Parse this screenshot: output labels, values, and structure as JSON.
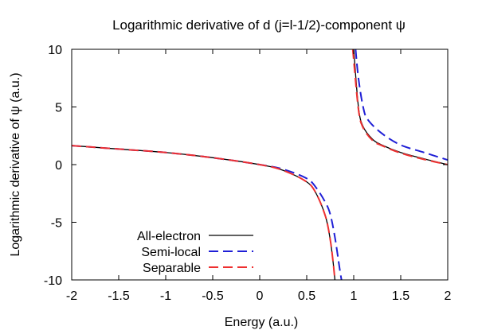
{
  "chart_data": {
    "type": "line",
    "title": "Logarithmic derivative of d (j=l-1/2)-component ψ",
    "xlabel": "Energy (a.u.)",
    "ylabel": "Logarithmic derivative of ψ (a.u.)",
    "xlim": [
      -2,
      2
    ],
    "ylim": [
      -10,
      10
    ],
    "xticks": [
      "-2",
      "-1.5",
      "-1",
      "-0.5",
      "0",
      "0.5",
      "1",
      "1.5",
      "2"
    ],
    "yticks": [
      "-10",
      "-5",
      "0",
      "5",
      "10"
    ],
    "grid": false,
    "legend": "bottom-left",
    "series": [
      {
        "name": "All-electron",
        "color": "#000000",
        "dash": "solid",
        "x": [
          -2.0,
          -1.5,
          -1.0,
          -0.5,
          0.0,
          0.25,
          0.5,
          0.6,
          0.7,
          0.75,
          0.78,
          0.8,
          0.82,
          1.0,
          1.05,
          1.1,
          1.2,
          1.3,
          1.5,
          1.75,
          2.0
        ],
        "y": [
          1.65,
          1.35,
          1.05,
          0.6,
          0.0,
          -0.5,
          -1.5,
          -2.5,
          -4.5,
          -6.5,
          -8.4,
          -10.0,
          null,
          10.0,
          5.0,
          3.3,
          2.2,
          1.7,
          1.05,
          0.5,
          0.0
        ]
      },
      {
        "name": "Semi-local",
        "color": "#1f1fd6",
        "dash": "dashed",
        "x": [
          -2.0,
          -1.5,
          -1.0,
          -0.5,
          0.0,
          0.25,
          0.5,
          0.6,
          0.7,
          0.75,
          0.8,
          0.85,
          0.87,
          0.9,
          1.02,
          1.05,
          1.1,
          1.15,
          1.3,
          1.5,
          1.75,
          2.0
        ],
        "y": [
          1.65,
          1.35,
          1.05,
          0.6,
          0.0,
          -0.4,
          -1.2,
          -2.0,
          -3.3,
          -4.3,
          -6.3,
          -9.0,
          -10.0,
          null,
          10.0,
          7.5,
          5.0,
          3.9,
          2.7,
          1.7,
          1.05,
          0.4
        ]
      },
      {
        "name": "Separable",
        "color": "#ee3030",
        "dash": "dashed",
        "x": [
          -2.0,
          -1.5,
          -1.0,
          -0.5,
          0.0,
          0.25,
          0.5,
          0.6,
          0.7,
          0.75,
          0.78,
          0.8,
          0.82,
          0.99,
          1.05,
          1.1,
          1.2,
          1.3,
          1.5,
          1.75,
          2.0
        ],
        "y": [
          1.65,
          1.35,
          1.05,
          0.6,
          0.0,
          -0.5,
          -1.5,
          -2.5,
          -4.5,
          -6.5,
          -8.4,
          -10.0,
          null,
          10.0,
          4.8,
          3.2,
          2.1,
          1.65,
          1.0,
          0.45,
          0.0
        ]
      }
    ]
  }
}
